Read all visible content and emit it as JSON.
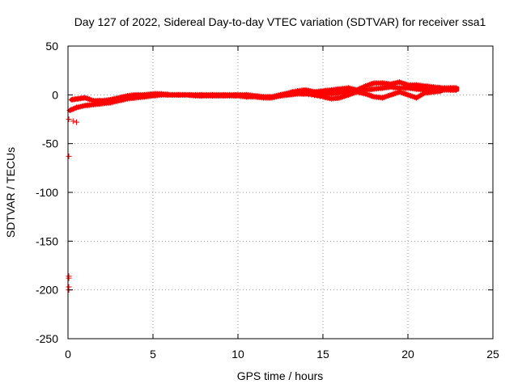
{
  "chart_data": {
    "type": "scatter",
    "title": "Day 127 of 2022, Sidereal Day-to-day VTEC variation (SDTVAR) for receiver ssa1",
    "xlabel": "GPS time / hours",
    "ylabel": "SDTVAR / TECUs",
    "xlim": [
      0,
      25
    ],
    "ylim": [
      -250,
      50
    ],
    "xticks": [
      0,
      5,
      10,
      15,
      20,
      25
    ],
    "yticks": [
      50,
      0,
      -50,
      -100,
      -150,
      -200,
      -250
    ],
    "grid": true,
    "series": [
      {
        "name": "SDTVAR",
        "color": "#ff0000",
        "bands": [
          {
            "x": [
              0.1,
              0.5,
              1.0,
              1.5,
              2.0,
              2.5,
              3.0,
              3.5,
              4.0,
              4.5,
              5.0,
              5.5,
              6.0,
              6.5,
              7.0,
              7.5,
              8.0,
              8.5,
              9.0,
              9.5,
              10.0,
              10.5,
              11.0,
              11.5,
              12.0,
              12.5,
              13.0,
              13.5,
              14.0,
              14.5,
              15.0,
              15.5,
              16.0,
              16.5,
              17.0,
              17.5,
              18.0,
              18.5,
              19.0,
              19.5,
              20.0,
              20.5,
              21.0,
              21.5,
              22.0,
              22.5,
              22.9
            ],
            "y": [
              -16,
              -13,
              -11,
              -10,
              -9,
              -8,
              -6,
              -4,
              -3,
              -2,
              -1,
              0,
              0,
              0,
              0,
              -1,
              -1,
              -1,
              -1,
              -1,
              -1,
              -2,
              -2,
              -3,
              -3,
              -1,
              0,
              1,
              1,
              1,
              1,
              1,
              2,
              3,
              4,
              5,
              6,
              7,
              8,
              7,
              7,
              6,
              5,
              5,
              5,
              5,
              5
            ]
          },
          {
            "x": [
              0.2,
              0.6,
              1.0,
              1.5,
              2.0,
              2.5,
              3.0,
              3.5,
              4.0,
              4.5,
              5.0,
              5.5,
              6.0,
              6.5,
              7.0,
              7.5,
              8.0,
              8.5,
              9.0,
              9.5,
              10.0,
              10.5,
              11.0,
              11.5,
              12.0,
              12.5,
              13.0,
              13.5,
              14.0,
              14.5,
              15.0,
              15.5,
              16.0,
              16.5,
              17.0,
              17.5,
              18.0,
              18.5,
              19.0,
              19.5,
              20.0,
              20.5,
              21.0,
              21.5,
              22.0,
              22.5,
              22.9
            ],
            "y": [
              -5,
              -4,
              -3,
              -6,
              -6,
              -5,
              -3,
              -1,
              0,
              0,
              1,
              1,
              0,
              0,
              0,
              0,
              0,
              0,
              0,
              0,
              0,
              0,
              -1,
              -2,
              -2,
              0,
              2,
              4,
              5,
              3,
              4,
              5,
              6,
              7,
              5,
              9,
              12,
              12,
              11,
              13,
              10,
              10,
              9,
              8,
              7,
              7,
              7
            ]
          },
          {
            "x": [
              13.2,
              14.0,
              15.0,
              15.5,
              16.0,
              16.5,
              17.0,
              17.5,
              18.0,
              18.5,
              19.0,
              19.5,
              20.0,
              20.5,
              21.0,
              21.5,
              22.0
            ],
            "y": [
              3,
              1,
              -2,
              -4,
              -3,
              0,
              3,
              1,
              -2,
              -3,
              0,
              3,
              0,
              -3,
              2,
              3,
              4
            ]
          }
        ],
        "outliers": [
          {
            "x": 0.05,
            "y": -25
          },
          {
            "x": 0.05,
            "y": -63
          },
          {
            "x": 0.05,
            "y": -186
          },
          {
            "x": 0.05,
            "y": -188
          },
          {
            "x": 0.05,
            "y": -197
          },
          {
            "x": 0.05,
            "y": -200
          },
          {
            "x": 0.3,
            "y": -27
          },
          {
            "x": 0.5,
            "y": -28
          }
        ]
      }
    ]
  }
}
